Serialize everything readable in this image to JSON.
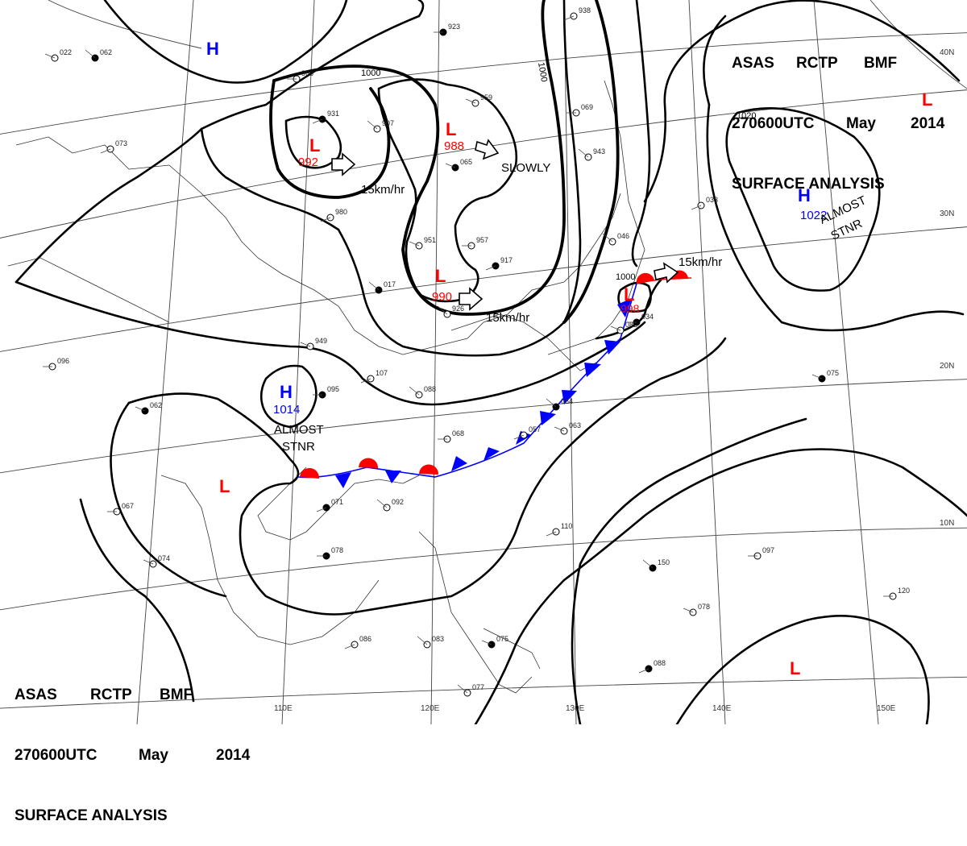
{
  "header": {
    "line1": [
      "ASAS",
      "RCTP",
      "BMF"
    ],
    "line2": [
      "270600UTC",
      "May",
      "2014"
    ],
    "line3": "SURFACE ANALYSIS"
  },
  "footer": {
    "line1": [
      "ASAS",
      "RCTP",
      "BMF"
    ],
    "line2": [
      "270600UTC",
      "May",
      "2014"
    ],
    "line3": "SURFACE ANALYSIS"
  },
  "colors": {
    "high": "#0000ff",
    "low": "#ff0000",
    "cold_front": "#0000ff",
    "warm_front": "#ff0000",
    "isobar": "#000000"
  },
  "pressure_systems": [
    {
      "type": "H",
      "value": ""
    },
    {
      "type": "L",
      "value": "992"
    },
    {
      "type": "L",
      "value": "988"
    },
    {
      "type": "L",
      "value": "990"
    },
    {
      "type": "L",
      "value": "998"
    },
    {
      "type": "H",
      "value": "1022"
    },
    {
      "type": "H",
      "value": "1014"
    },
    {
      "type": "L",
      "value": ""
    },
    {
      "type": "L",
      "value": ""
    },
    {
      "type": "L",
      "value": ""
    }
  ],
  "annotations": {
    "speed_1": "15km/hr",
    "speed_2": "15km/hr",
    "speed_3": "15km/hr",
    "slowly": "SLOWLY",
    "almost_stnr_1": [
      "ALMOST",
      "STNR"
    ],
    "almost_stnr_2": [
      "ALMOST",
      "STNR"
    ]
  },
  "isobar_labels": [
    "1000",
    "1000",
    "1020",
    "1000"
  ],
  "grid_labels": {
    "longitudes": [
      "110E",
      "120E",
      "130E",
      "140E",
      "150E"
    ],
    "latitudes": [
      "10N",
      "20N",
      "30N",
      "40N"
    ]
  },
  "station_samples": [
    "062",
    "022",
    "963",
    "931",
    "907",
    "959",
    "923",
    "938",
    "943",
    "065",
    "069",
    "980",
    "017",
    "951",
    "957",
    "917",
    "926",
    "949",
    "095",
    "107",
    "088",
    "062",
    "068",
    "057",
    "064",
    "063",
    "067",
    "071",
    "092",
    "074",
    "078",
    "086",
    "083",
    "075",
    "097",
    "110",
    "150",
    "078",
    "120",
    "088",
    "077",
    "082",
    "034",
    "033",
    "046",
    "075",
    "096",
    "073"
  ]
}
